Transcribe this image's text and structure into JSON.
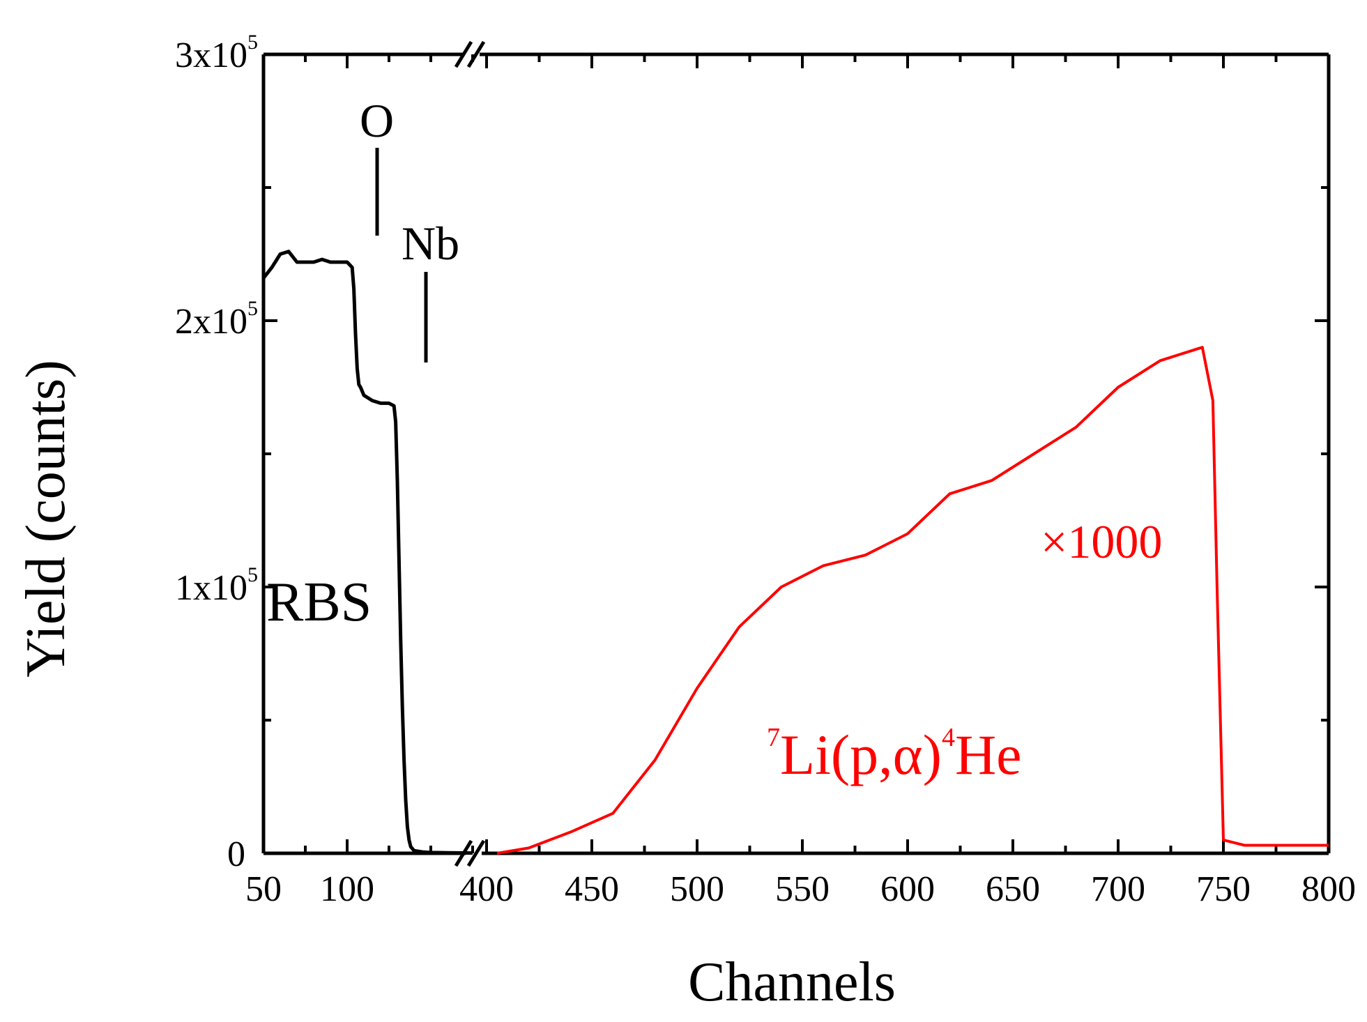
{
  "chart_data": {
    "type": "line",
    "title": "",
    "xlabel": "Channels",
    "ylabel": "Yield (counts)",
    "ylim": [
      0,
      300000
    ],
    "broken_axis": true,
    "x_segments": [
      {
        "xlim": [
          50,
          175
        ],
        "ticks": [
          "50",
          "100"
        ]
      },
      {
        "xlim": [
          400,
          800
        ],
        "ticks": [
          "400",
          "450",
          "500",
          "550",
          "600",
          "650",
          "700",
          "750",
          "800"
        ]
      }
    ],
    "y_ticks": [
      {
        "value": 0,
        "base": "0",
        "exp": ""
      },
      {
        "value": 100000,
        "base": "1x10",
        "exp": "5"
      },
      {
        "value": 200000,
        "base": "2x10",
        "exp": "5"
      },
      {
        "value": 300000,
        "base": "3x10",
        "exp": "5"
      }
    ],
    "series": [
      {
        "name": "RBS",
        "color": "#000000",
        "x": [
          50,
          55,
          60,
          65,
          70,
          75,
          80,
          85,
          90,
          95,
          100,
          103,
          104,
          105,
          106,
          107,
          108,
          110,
          115,
          120,
          125,
          128,
          129,
          130,
          131,
          132,
          133,
          134,
          135,
          136,
          137,
          138,
          140,
          145,
          150,
          160,
          175
        ],
        "y": [
          216000,
          220000,
          225000,
          226000,
          222000,
          222000,
          222000,
          223000,
          222000,
          222000,
          222000,
          220000,
          212000,
          195000,
          182000,
          176000,
          175000,
          172000,
          170000,
          169000,
          169000,
          168000,
          162000,
          140000,
          110000,
          80000,
          55000,
          35000,
          20000,
          10000,
          5000,
          2500,
          1000,
          500,
          300,
          200,
          100
        ]
      },
      {
        "name": "7Li(p,α)4He ×1000",
        "color": "#ff0000",
        "x": [
          405,
          420,
          440,
          460,
          480,
          500,
          520,
          540,
          560,
          580,
          600,
          620,
          640,
          660,
          680,
          700,
          720,
          740,
          745,
          747,
          750,
          760,
          780,
          800
        ],
        "y": [
          0,
          2000,
          8000,
          15000,
          35000,
          62000,
          85000,
          100000,
          108000,
          112000,
          120000,
          135000,
          140000,
          150000,
          160000,
          175000,
          185000,
          190000,
          170000,
          100000,
          5000,
          3000,
          3000,
          3000
        ]
      }
    ],
    "annotations": {
      "rbs": "RBS",
      "oxygen": "O",
      "niobium": "Nb",
      "scale": "×1000",
      "reaction_a": "7",
      "reaction_b": "Li(p,α)",
      "reaction_c": "4",
      "reaction_d": "He"
    }
  }
}
